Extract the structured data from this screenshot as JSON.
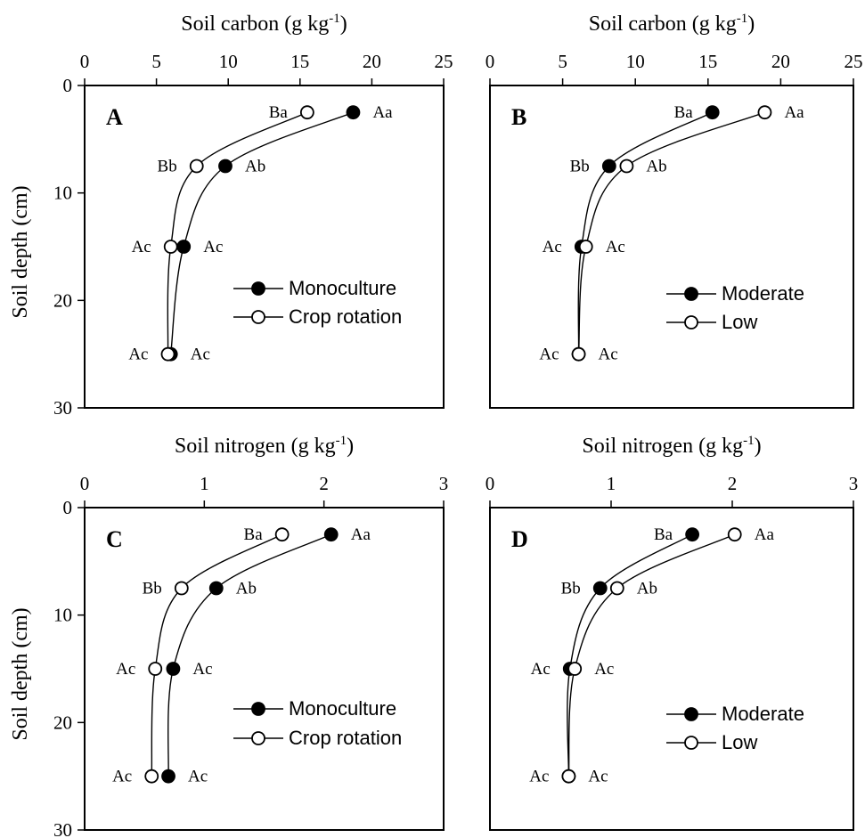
{
  "chart_data": [
    {
      "type": "line",
      "panel_letter": "A",
      "xlabel": "Soil carbon (g kg",
      "xlabel_sup": "-1",
      "xlabel_close": ")",
      "ylabel": "Soil depth (cm)",
      "xlim": [
        0,
        25
      ],
      "ylim": [
        0,
        30
      ],
      "x_ticks": [
        "0",
        "5",
        "10",
        "15",
        "20",
        "25"
      ],
      "y_ticks": [
        "0",
        "10",
        "20",
        "30"
      ],
      "x_axis_position": "top",
      "y_inverted": true,
      "grid": false,
      "legend": "center-right",
      "depth": [
        2.5,
        7.5,
        15,
        25
      ],
      "series": [
        {
          "name": "Monoculture",
          "marker": "filled",
          "x": [
            18.7,
            9.8,
            6.9,
            6.0
          ],
          "labels": [
            "Aa",
            "Ab",
            "Ac",
            "Ac"
          ],
          "label_side": [
            "right",
            "right",
            "right",
            "right"
          ]
        },
        {
          "name": "Crop rotation",
          "marker": "open",
          "x": [
            15.5,
            7.8,
            6.0,
            5.8
          ],
          "labels": [
            "Ba",
            "Bb",
            "Ac",
            "Ac"
          ],
          "label_side": [
            "left",
            "left",
            "left",
            "left"
          ]
        }
      ]
    },
    {
      "type": "line",
      "panel_letter": "B",
      "xlabel": "Soil carbon (g kg",
      "xlabel_sup": "-1",
      "xlabel_close": ")",
      "ylabel": "",
      "xlim": [
        0,
        25
      ],
      "ylim": [
        0,
        30
      ],
      "x_ticks": [
        "0",
        "5",
        "10",
        "15",
        "20",
        "25"
      ],
      "y_ticks": [],
      "x_axis_position": "top",
      "y_inverted": true,
      "grid": false,
      "legend": "center-right",
      "depth": [
        2.5,
        7.5,
        15,
        25
      ],
      "series": [
        {
          "name": "Moderate",
          "marker": "filled",
          "x": [
            15.3,
            8.2,
            6.3,
            6.1
          ],
          "labels": [
            "Ba",
            "Bb",
            "Ac",
            "Ac"
          ],
          "label_side": [
            "left",
            "left",
            "left",
            "left"
          ]
        },
        {
          "name": "Low",
          "marker": "open",
          "x": [
            18.9,
            9.4,
            6.6,
            6.1
          ],
          "labels": [
            "Aa",
            "Ab",
            "Ac",
            "Ac"
          ],
          "label_side": [
            "right",
            "right",
            "right",
            "right"
          ]
        }
      ]
    },
    {
      "type": "line",
      "panel_letter": "C",
      "xlabel": "Soil nitrogen (g kg",
      "xlabel_sup": "-1",
      "xlabel_close": ")",
      "ylabel": "Soil depth (cm)",
      "xlim": [
        0,
        3
      ],
      "ylim": [
        0,
        30
      ],
      "x_ticks": [
        "0",
        "1",
        "2",
        "3"
      ],
      "y_ticks": [
        "0",
        "10",
        "20",
        "30"
      ],
      "x_axis_position": "top",
      "y_inverted": true,
      "grid": false,
      "legend": "center-right",
      "depth": [
        2.5,
        7.5,
        15,
        25
      ],
      "series": [
        {
          "name": "Monoculture",
          "marker": "filled",
          "x": [
            2.06,
            1.1,
            0.74,
            0.7
          ],
          "labels": [
            "Aa",
            "Ab",
            "Ac",
            "Ac"
          ],
          "label_side": [
            "right",
            "right",
            "right",
            "right"
          ]
        },
        {
          "name": "Crop rotation",
          "marker": "open",
          "x": [
            1.65,
            0.81,
            0.59,
            0.56
          ],
          "labels": [
            "Ba",
            "Bb",
            "Ac",
            "Ac"
          ],
          "label_side": [
            "left",
            "left",
            "left",
            "left"
          ]
        }
      ]
    },
    {
      "type": "line",
      "panel_letter": "D",
      "xlabel": "Soil nitrogen (g kg",
      "xlabel_sup": "-1",
      "xlabel_close": ")",
      "ylabel": "",
      "xlim": [
        0,
        3
      ],
      "ylim": [
        0,
        30
      ],
      "x_ticks": [
        "0",
        "1",
        "2",
        "3"
      ],
      "y_ticks": [],
      "x_axis_position": "top",
      "y_inverted": true,
      "grid": false,
      "legend": "center-right",
      "depth": [
        2.5,
        7.5,
        15,
        25
      ],
      "series": [
        {
          "name": "Moderate",
          "marker": "filled",
          "x": [
            1.67,
            0.91,
            0.66,
            0.65
          ],
          "labels": [
            "Ba",
            "Bb",
            "Ac",
            "Ac"
          ],
          "label_side": [
            "left",
            "left",
            "left",
            "left"
          ]
        },
        {
          "name": "Low",
          "marker": "open",
          "x": [
            2.02,
            1.05,
            0.7,
            0.65
          ],
          "labels": [
            "Aa",
            "Ab",
            "Ac",
            "Ac"
          ],
          "label_side": [
            "right",
            "right",
            "right",
            "right"
          ]
        }
      ]
    }
  ]
}
